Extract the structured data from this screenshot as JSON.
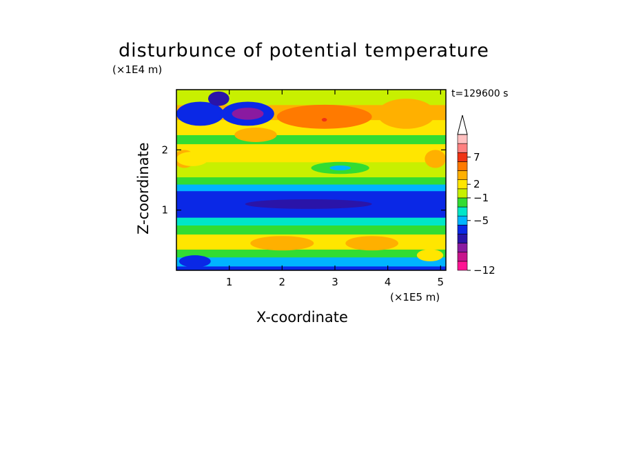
{
  "chart_data": {
    "type": "heatmap",
    "title": "disturbunce of potential temperature",
    "xlabel": "X-coordinate",
    "ylabel": "Z-coordinate",
    "x_unit": "(×1E5 m)",
    "y_unit": "(×1E4 m)",
    "annotation": "t=129600 s",
    "xlim": [
      0,
      5.1
    ],
    "ylim": [
      0,
      3.0
    ],
    "x_ticks": [
      1,
      2,
      3,
      4,
      5
    ],
    "y_ticks": [
      1,
      2
    ],
    "colorbar": {
      "tick_labels": [
        "7",
        "2",
        "−1",
        "−5",
        "−12"
      ],
      "colors": [
        "#ff1493",
        "#c8148c",
        "#8a1aa0",
        "#2a14a8",
        "#0a28e6",
        "#00b4ff",
        "#00e6c8",
        "#32dc32",
        "#c8f000",
        "#ffe600",
        "#ffb000",
        "#ff7a00",
        "#f03214",
        "#ff8080",
        "#ffc0c0"
      ],
      "extend": "max"
    },
    "bands": [
      {
        "z": [
          0.0,
          0.07
        ],
        "color": "#0a28e6"
      },
      {
        "z": [
          0.07,
          0.22
        ],
        "color": "#00b4ff"
      },
      {
        "z": [
          0.22,
          0.35
        ],
        "color": "#32dc32"
      },
      {
        "z": [
          0.35,
          0.6
        ],
        "color": "#ffe600"
      },
      {
        "z": [
          0.6,
          0.75
        ],
        "color": "#32dc32"
      },
      {
        "z": [
          0.75,
          0.88
        ],
        "color": "#00e6c8"
      },
      {
        "z": [
          0.88,
          1.32
        ],
        "color": "#0a28e6"
      },
      {
        "z": [
          1.32,
          1.43
        ],
        "color": "#00b4ff"
      },
      {
        "z": [
          1.43,
          1.55
        ],
        "color": "#32dc32"
      },
      {
        "z": [
          1.55,
          1.8
        ],
        "color": "#c8f000"
      },
      {
        "z": [
          1.8,
          2.1
        ],
        "color": "#ffe600"
      },
      {
        "z": [
          2.1,
          2.25
        ],
        "color": "#32dc32"
      },
      {
        "z": [
          2.25,
          2.5
        ],
        "color": "#ffe600"
      },
      {
        "z": [
          2.5,
          2.75
        ],
        "color": "#ffb000"
      },
      {
        "z": [
          2.75,
          3.0
        ],
        "color": "#c8f000"
      }
    ],
    "features": [
      {
        "type": "ellipse",
        "x": 0.45,
        "z": 2.6,
        "rx": 0.45,
        "rz": 0.2,
        "color": "#0a28e6"
      },
      {
        "type": "ellipse",
        "x": 0.8,
        "z": 2.85,
        "rx": 0.2,
        "rz": 0.12,
        "color": "#2a14a8"
      },
      {
        "type": "ellipse",
        "x": 1.35,
        "z": 2.6,
        "rx": 0.5,
        "rz": 0.2,
        "color": "#0a28e6"
      },
      {
        "type": "ellipse",
        "x": 1.35,
        "z": 2.6,
        "rx": 0.3,
        "rz": 0.1,
        "color": "#8a1aa0"
      },
      {
        "type": "ellipse",
        "x": 1.5,
        "z": 2.25,
        "rx": 0.4,
        "rz": 0.12,
        "color": "#ffb000"
      },
      {
        "type": "ellipse",
        "x": 2.8,
        "z": 2.55,
        "rx": 0.9,
        "rz": 0.2,
        "color": "#ff7a00"
      },
      {
        "type": "ellipse",
        "x": 2.8,
        "z": 2.5,
        "rx": 0.05,
        "rz": 0.03,
        "color": "#f03214"
      },
      {
        "type": "ellipse",
        "x": 4.35,
        "z": 2.6,
        "rx": 0.55,
        "rz": 0.25,
        "color": "#ffb000"
      },
      {
        "type": "ellipse",
        "x": 0.15,
        "z": 1.85,
        "rx": 0.2,
        "rz": 0.15,
        "color": "#ffb000"
      },
      {
        "type": "ellipse",
        "x": 4.9,
        "z": 1.85,
        "rx": 0.2,
        "rz": 0.15,
        "color": "#ffb000"
      },
      {
        "type": "ellipse",
        "x": 3.1,
        "z": 1.7,
        "rx": 0.55,
        "rz": 0.1,
        "color": "#32dc32"
      },
      {
        "type": "ellipse",
        "x": 3.1,
        "z": 1.7,
        "rx": 0.2,
        "rz": 0.04,
        "color": "#00b4ff"
      },
      {
        "type": "ellipse",
        "x": 0.3,
        "z": 1.85,
        "rx": 0.3,
        "rz": 0.12,
        "color": "#ffe600"
      },
      {
        "type": "ellipse",
        "x": 2.0,
        "z": 0.45,
        "rx": 0.6,
        "rz": 0.12,
        "color": "#ffb000"
      },
      {
        "type": "ellipse",
        "x": 3.7,
        "z": 0.45,
        "rx": 0.5,
        "rz": 0.12,
        "color": "#ffb000"
      },
      {
        "type": "ellipse",
        "x": 0.35,
        "z": 0.15,
        "rx": 0.3,
        "rz": 0.1,
        "color": "#0a28e6"
      },
      {
        "type": "ellipse",
        "x": 4.8,
        "z": 0.25,
        "rx": 0.25,
        "rz": 0.1,
        "color": "#ffe600"
      },
      {
        "type": "ellipse",
        "x": 2.5,
        "z": 1.1,
        "rx": 1.2,
        "rz": 0.08,
        "color": "#2a14a8"
      }
    ]
  }
}
